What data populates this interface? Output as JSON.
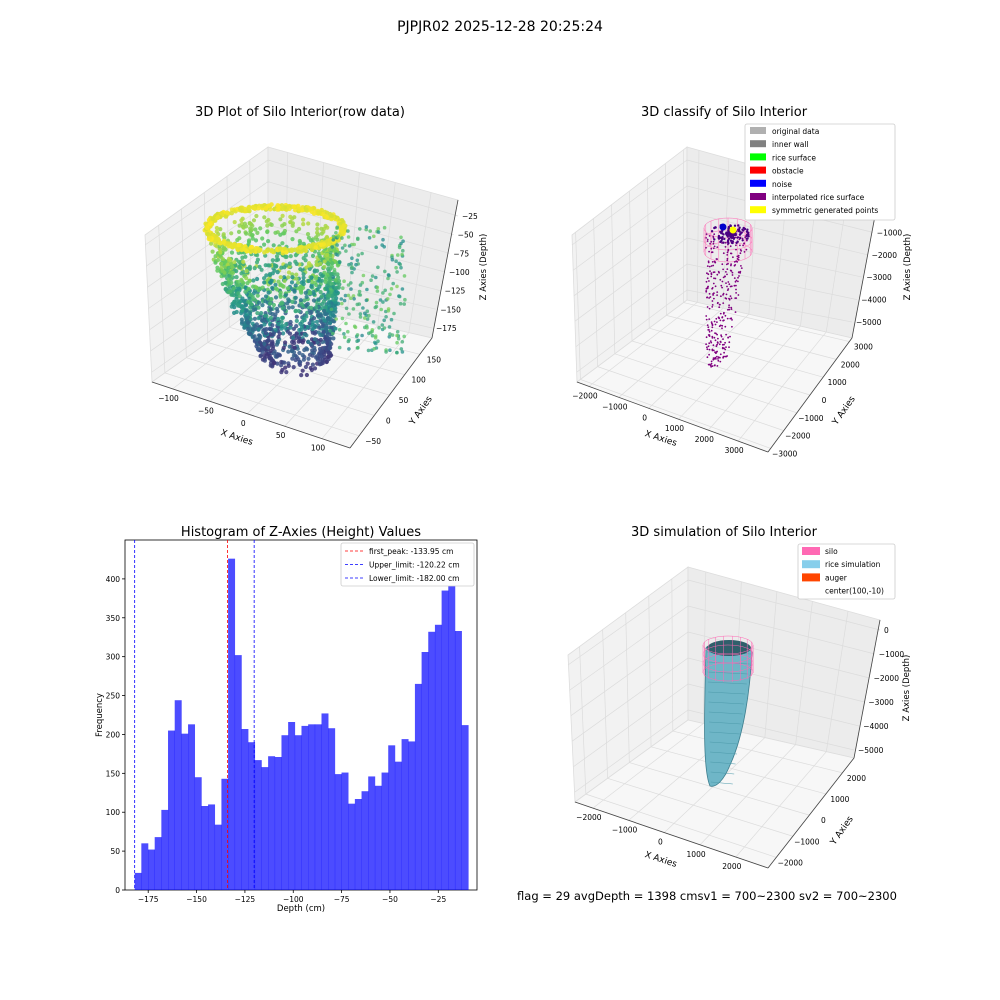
{
  "figure": {
    "suptitle": "PJPJR02 2025-12-28 20:25:24",
    "status_text": "flag = 29  avgDepth = 1398 cmsv1 = 700~2300  sv2 = 700~2300"
  },
  "panels": {
    "raw": {
      "title": "3D Plot of Silo Interior(row data)",
      "xlabel": "X Axies",
      "ylabel": "Y Axies",
      "zlabel": "Z Axies (Depth)",
      "xticks": [
        "−100",
        "−50",
        "0",
        "50",
        "100"
      ],
      "yticks": [
        "−50",
        "0",
        "50",
        "100",
        "150"
      ],
      "zticks": [
        "−25",
        "−50",
        "−75",
        "−100",
        "−125",
        "−150",
        "−175"
      ]
    },
    "classify": {
      "title": "3D classify of Silo Interior",
      "xlabel": "X Axies",
      "ylabel": "Y Axies",
      "zlabel": "Z Axies (Depth)",
      "xticks": [
        "−2000",
        "−1000",
        "0",
        "1000",
        "2000",
        "3000"
      ],
      "yticks": [
        "−3000",
        "−2000",
        "−1000",
        "0",
        "1000",
        "2000",
        "3000"
      ],
      "zticks": [
        "0",
        "−1000",
        "−2000",
        "−3000",
        "−4000",
        "−5000"
      ],
      "legend": [
        {
          "label": "original data",
          "color": "#b0b0b0"
        },
        {
          "label": "inner wall",
          "color": "#808080"
        },
        {
          "label": "rice surface",
          "color": "#00ff00"
        },
        {
          "label": "obstacle",
          "color": "#ff0000"
        },
        {
          "label": "noise",
          "color": "#0000ff"
        },
        {
          "label": "interpolated rice surface",
          "color": "#800080"
        },
        {
          "label": "symmetric generated points",
          "color": "#ffff00"
        }
      ]
    },
    "simulation": {
      "title": "3D simulation of Silo Interior",
      "xlabel": "X Axies",
      "ylabel": "Y Axies",
      "zlabel": "Z Axies (Depth)",
      "xticks": [
        "−2000",
        "−1000",
        "0",
        "1000",
        "2000"
      ],
      "yticks": [
        "−2000",
        "−1000",
        "0",
        "1000",
        "2000"
      ],
      "zticks": [
        "0",
        "−1000",
        "−2000",
        "−3000",
        "−4000",
        "−5000"
      ],
      "legend": [
        {
          "label": "silo",
          "color": "#ff69b4"
        },
        {
          "label": "rice simulation",
          "color": "#87ceeb"
        },
        {
          "label": "auger",
          "color": "#ff4500"
        },
        {
          "label": "center(100,-10)",
          "color": "none"
        }
      ]
    }
  },
  "chart_data": {
    "type": "bar",
    "title": "Histogram of Z-Axies (Height) Values",
    "xlabel": "Depth (cm)",
    "ylabel": "Frequency",
    "xlim": [
      -187,
      -5
    ],
    "ylim": [
      0,
      450
    ],
    "bar_color": "#0000ff",
    "bin_start": -182.0,
    "bin_width": 3.45,
    "values": [
      22,
      60,
      52,
      68,
      103,
      205,
      244,
      201,
      213,
      145,
      108,
      110,
      84,
      143,
      426,
      302,
      207,
      190,
      167,
      158,
      172,
      171,
      199,
      216,
      199,
      211,
      213,
      213,
      227,
      208,
      149,
      151,
      111,
      117,
      127,
      146,
      134,
      151,
      186,
      165,
      194,
      191,
      265,
      306,
      332,
      341,
      385,
      418,
      333,
      212
    ],
    "xticks": [
      {
        "value": -175,
        "label": "−175"
      },
      {
        "value": -150,
        "label": "−150"
      },
      {
        "value": -125,
        "label": "−125"
      },
      {
        "value": -100,
        "label": "−100"
      },
      {
        "value": -75,
        "label": "−75"
      },
      {
        "value": -50,
        "label": "−50"
      },
      {
        "value": -25,
        "label": "−25"
      }
    ],
    "yticks": [
      0,
      50,
      100,
      150,
      200,
      250,
      300,
      350,
      400
    ],
    "vlines": [
      {
        "value": -133.95,
        "label": "first_peak: -133.95 cm",
        "color": "#ff0000"
      },
      {
        "value": -120.22,
        "label": "Upper_limit: -120.22 cm",
        "color": "#0000ff"
      },
      {
        "value": -182.0,
        "label": "Lower_limit: -182.00 cm",
        "color": "#0000ff"
      }
    ]
  }
}
